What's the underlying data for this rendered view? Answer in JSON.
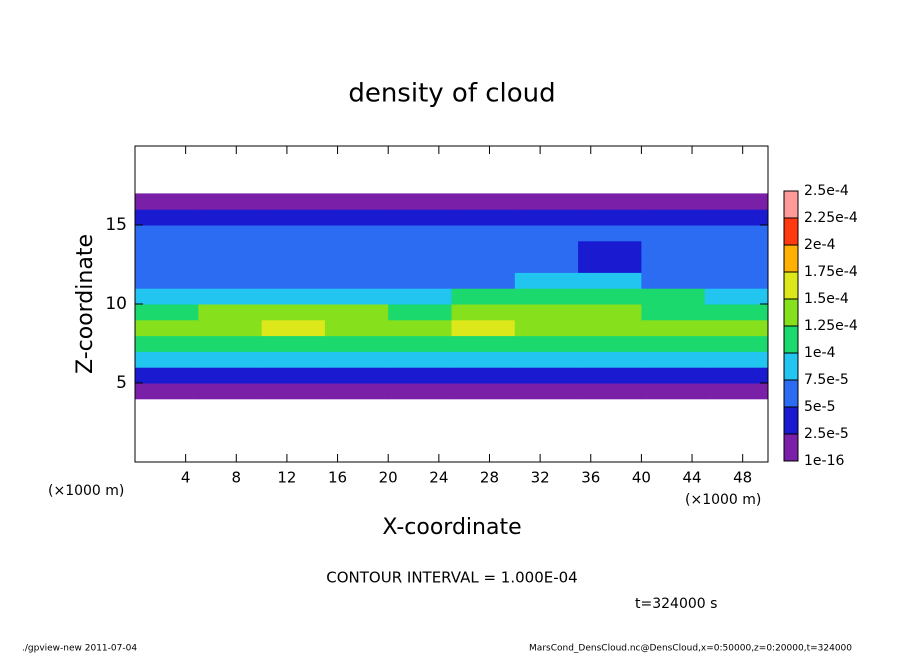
{
  "chart_data": {
    "type": "heatmap",
    "title": "density of cloud",
    "xlabel": "X-coordinate",
    "ylabel": "Z-coordinate",
    "x_unit_label": "(×1000 m)",
    "annotation": "CONTOUR INTERVAL = 1.000E-04",
    "time_label": "t=324000 s",
    "footer_left": "./gpview-new   2011-07-04",
    "footer_right": "MarsCond_DensCloud.nc@DensCloud,x=0:50000,z=0:20000,t=324000",
    "xlim": [
      0,
      50
    ],
    "xticks": [
      4,
      8,
      12,
      16,
      20,
      24,
      28,
      32,
      36,
      40,
      44,
      48
    ],
    "ylim": [
      0,
      20
    ],
    "yticks": [
      5,
      10,
      15
    ],
    "x": [
      2.5,
      7.5,
      12.5,
      17.5,
      22.5,
      27.5,
      32.5,
      37.5,
      42.5,
      47.5
    ],
    "z": [
      4.5,
      5.5,
      6.5,
      7.5,
      8.5,
      9.5,
      10.5,
      11.5,
      12.5,
      13.5,
      14.5,
      15.5,
      16.5
    ],
    "values": [
      [
        1e-05,
        1e-05,
        1e-05,
        1e-05,
        1e-05,
        1e-05,
        1e-05,
        1e-05,
        1e-05,
        1e-05
      ],
      [
        3e-05,
        3e-05,
        3e-05,
        3e-05,
        3e-05,
        3e-05,
        3e-05,
        3e-05,
        3e-05,
        3e-05
      ],
      [
        8e-05,
        8e-05,
        8e-05,
        8e-05,
        8e-05,
        8e-05,
        8e-05,
        8e-05,
        8e-05,
        8e-05
      ],
      [
        0.00011,
        0.00012,
        0.00012,
        0.00011,
        0.00011,
        0.00012,
        0.00011,
        0.00011,
        0.00011,
        0.00011
      ],
      [
        0.00013,
        0.00014,
        0.00016,
        0.00014,
        0.00013,
        0.00016,
        0.00014,
        0.00013,
        0.00013,
        0.00013
      ],
      [
        0.00012,
        0.00013,
        0.00013,
        0.00013,
        0.00012,
        0.00013,
        0.00013,
        0.00013,
        0.00012,
        0.00012
      ],
      [
        9e-05,
        8e-05,
        8e-05,
        8e-05,
        9e-05,
        0.000105,
        0.000105,
        0.000105,
        0.000105,
        9e-05
      ],
      [
        7e-05,
        7e-05,
        7e-05,
        7e-05,
        6e-05,
        7e-05,
        8e-05,
        8e-05,
        7e-05,
        7e-05
      ],
      [
        6e-05,
        6e-05,
        6e-05,
        6e-05,
        5.5e-05,
        6e-05,
        5.5e-05,
        4e-05,
        6e-05,
        6e-05
      ],
      [
        6e-05,
        6e-05,
        6e-05,
        6e-05,
        5.5e-05,
        6e-05,
        5.5e-05,
        4.5e-05,
        6e-05,
        6e-05
      ],
      [
        6e-05,
        6e-05,
        6e-05,
        6e-05,
        6e-05,
        6e-05,
        6e-05,
        6e-05,
        6e-05,
        6e-05
      ],
      [
        4e-05,
        4e-05,
        4e-05,
        4e-05,
        4e-05,
        4e-05,
        4e-05,
        4e-05,
        4e-05,
        4e-05
      ],
      [
        1e-05,
        1e-05,
        1e-05,
        1e-05,
        1e-05,
        1e-05,
        1e-05,
        1e-05,
        1e-05,
        1e-05
      ]
    ],
    "levels": [
      1e-16,
      {
        "value": 2.5e-05,
        "label": "2.5e-5"
      },
      {
        "value": 5e-05,
        "label": "5e-5"
      },
      {
        "value": 7.5e-05,
        "label": "7.5e-5"
      },
      {
        "value": 0.0001,
        "label": "1e-4"
      },
      {
        "value": 0.000125,
        "label": "1.25e-4"
      },
      {
        "value": 0.00015,
        "label": "1.5e-4"
      },
      {
        "value": 0.000175,
        "label": "1.75e-4"
      },
      {
        "value": 0.0002,
        "label": "2e-4"
      },
      {
        "value": 0.000225,
        "label": "2.25e-4"
      },
      {
        "value": 0.00025,
        "label": "2.5e-4"
      }
    ],
    "colors": [
      "#7a1fa8",
      "#1a1ad0",
      "#2b6cf2",
      "#22c4f0",
      "#1cd96e",
      "#86e01c",
      "#dde81a",
      "#ffb000",
      "#ff3a10",
      "#ff9a9a"
    ]
  }
}
